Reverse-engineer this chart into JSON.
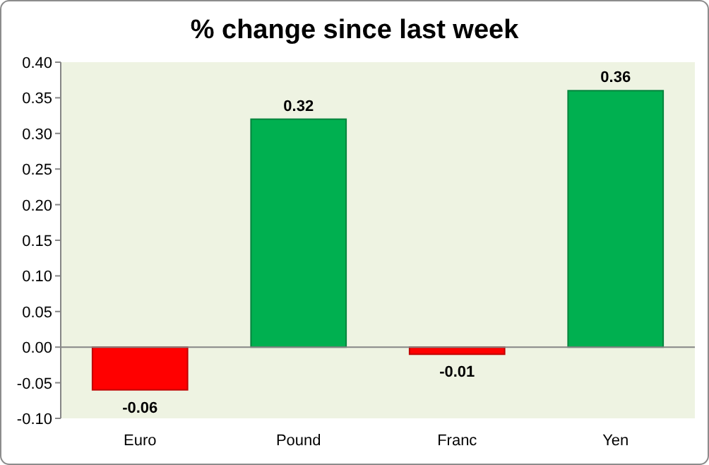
{
  "chart_data": {
    "type": "bar",
    "title": "% change since last week",
    "categories": [
      "Euro",
      "Pound",
      "Franc",
      "Yen"
    ],
    "values": [
      -0.06,
      0.32,
      -0.01,
      0.36
    ],
    "colors": [
      "#ff0000",
      "#00b050",
      "#ff0000",
      "#00b050"
    ],
    "ylim": [
      -0.1,
      0.4
    ],
    "yticks": [
      {
        "value": -0.1,
        "label": "-0.10"
      },
      {
        "value": -0.05,
        "label": "-0.05"
      },
      {
        "value": 0,
        "label": "0.00"
      },
      {
        "value": 0.05,
        "label": "0.05"
      },
      {
        "value": 0.1,
        "label": "0.10"
      },
      {
        "value": 0.15,
        "label": "0.15"
      },
      {
        "value": 0.2,
        "label": "0.20"
      },
      {
        "value": 0.25,
        "label": "0.25"
      },
      {
        "value": 0.3,
        "label": "0.30"
      },
      {
        "value": 0.35,
        "label": "0.35"
      },
      {
        "value": 0.4,
        "label": "0.40"
      }
    ],
    "data_labels": true
  }
}
